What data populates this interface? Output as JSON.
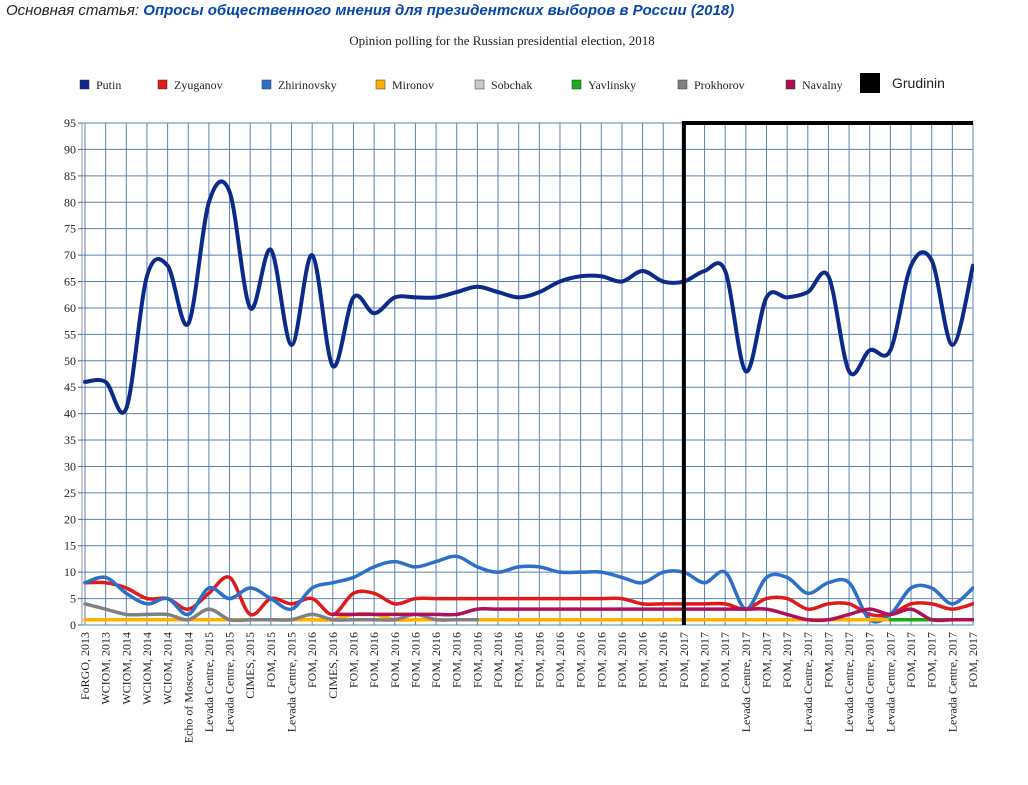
{
  "header": {
    "label": "Основная статья:",
    "link": "Опросы общественного мнения для президентских выборов в России (2018)"
  },
  "chart_data": {
    "type": "line",
    "title": "Opinion polling for the Russian presidential election, 2018",
    "categories": [
      "FoRGO, 2013",
      "WCIOM, 2013",
      "WCIOM, 2014",
      "WCIOM, 2014",
      "WCIOM, 2014",
      "Echo of Moscow, 2014",
      "Levada Centre, 2015",
      "Levada Centre, 2015",
      "CIMES, 2015",
      "FOM, 2015",
      "Levada Centre, 2015",
      "FOM, 2016",
      "CIMES, 2016",
      "FOM, 2016",
      "FOM, 2016",
      "FOM, 2016",
      "FOM, 2016",
      "FOM, 2016",
      "FOM, 2016",
      "FOM, 2016",
      "FOM, 2016",
      "FOM, 2016",
      "FOM, 2016",
      "FOM, 2016",
      "FOM, 2016",
      "FOM, 2016",
      "FOM, 2016",
      "FOM, 2016",
      "FOM, 2016",
      "FOM, 2017",
      "FOM, 2017",
      "FOM, 2017",
      "Levada Centre, 2017",
      "FOM, 2017",
      "FOM, 2017",
      "Levada Centre, 2017",
      "FOM, 2017",
      "Levada Centre, 2017",
      "Levada Centre, 2017",
      "Levada Centre, 2017",
      "FOM, 2017",
      "FOM, 2017",
      "Levada Centre, 2017",
      "FOM, 2017"
    ],
    "series": [
      {
        "name": "Putin",
        "color": "#0b2a8a",
        "values": [
          46,
          46,
          41,
          66,
          68,
          57,
          80,
          82,
          60,
          71,
          53,
          70,
          49,
          62,
          59,
          62,
          62,
          62,
          63,
          64,
          63,
          62,
          63,
          65,
          66,
          66,
          65,
          67,
          65,
          65,
          67,
          67,
          48,
          62,
          62,
          63,
          66,
          48,
          52,
          52,
          68,
          69,
          53,
          68
        ]
      },
      {
        "name": "Zyuganov",
        "color": "#e01a1a",
        "values": [
          8,
          8,
          7,
          5,
          5,
          3,
          6,
          9,
          2,
          5,
          4,
          5,
          2,
          6,
          6,
          4,
          5,
          5,
          5,
          5,
          5,
          5,
          5,
          5,
          5,
          5,
          5,
          4,
          4,
          4,
          4,
          4,
          3,
          5,
          5,
          3,
          4,
          4,
          2,
          2,
          4,
          4,
          3,
          4
        ]
      },
      {
        "name": "Zhirinovsky",
        "color": "#2e6fc8",
        "values": [
          8,
          9,
          6,
          4,
          5,
          2,
          7,
          5,
          7,
          5,
          3,
          7,
          8,
          9,
          11,
          12,
          11,
          12,
          13,
          11,
          10,
          11,
          11,
          10,
          10,
          10,
          9,
          8,
          10,
          10,
          8,
          10,
          3,
          9,
          9,
          6,
          8,
          8,
          1,
          2,
          7,
          7,
          4,
          7
        ]
      },
      {
        "name": "Mironov",
        "color": "#ffb000",
        "values": [
          1,
          1,
          1,
          1,
          1,
          1,
          1,
          1,
          1,
          1,
          1,
          1,
          1,
          2,
          2,
          1,
          1,
          1,
          1,
          1,
          1,
          1,
          1,
          1,
          1,
          1,
          1,
          1,
          1,
          1,
          1,
          1,
          1,
          1,
          1,
          1,
          1,
          1,
          1,
          1,
          1,
          1,
          1,
          1
        ]
      },
      {
        "name": "Sobchak",
        "color": "#c8c8c8",
        "values": [
          null,
          null,
          null,
          null,
          null,
          null,
          null,
          null,
          null,
          null,
          null,
          null,
          null,
          null,
          null,
          null,
          null,
          null,
          null,
          null,
          null,
          null,
          null,
          null,
          null,
          null,
          null,
          null,
          null,
          null,
          null,
          null,
          null,
          null,
          null,
          null,
          null,
          null,
          null,
          null,
          1,
          1,
          1,
          1
        ]
      },
      {
        "name": "Yavlinsky",
        "color": "#1aaa1a",
        "values": [
          null,
          null,
          null,
          null,
          null,
          null,
          null,
          null,
          null,
          null,
          null,
          null,
          null,
          null,
          null,
          null,
          null,
          null,
          null,
          null,
          null,
          null,
          null,
          null,
          null,
          null,
          null,
          null,
          null,
          null,
          null,
          null,
          null,
          null,
          null,
          null,
          null,
          null,
          null,
          1,
          1,
          1,
          1,
          1
        ]
      },
      {
        "name": "Prokhorov",
        "color": "#808080",
        "values": [
          4,
          3,
          2,
          2,
          2,
          1,
          3,
          1,
          1,
          1,
          1,
          2,
          1,
          1,
          1,
          1,
          2,
          1,
          1,
          1,
          null,
          null,
          null,
          null,
          null,
          null,
          null,
          null,
          null,
          null,
          null,
          null,
          null,
          null,
          null,
          null,
          null,
          null,
          null,
          null,
          null,
          null,
          null,
          null
        ]
      },
      {
        "name": "Navalny",
        "color": "#b0105a",
        "values": [
          null,
          null,
          null,
          null,
          null,
          null,
          null,
          null,
          null,
          null,
          null,
          null,
          2,
          2,
          2,
          2,
          2,
          2,
          2,
          3,
          3,
          3,
          3,
          3,
          3,
          3,
          3,
          3,
          3,
          3,
          3,
          3,
          3,
          3,
          2,
          1,
          1,
          2,
          3,
          2,
          3,
          1,
          1,
          1
        ]
      },
      {
        "name": "Grudinin",
        "color": "#000000",
        "values": [
          null,
          null,
          null,
          null,
          null,
          null,
          null,
          null,
          null,
          null,
          null,
          null,
          null,
          null,
          null,
          null,
          null,
          null,
          null,
          null,
          null,
          null,
          null,
          null,
          null,
          null,
          null,
          null,
          null,
          null,
          null,
          null,
          null,
          null,
          null,
          null,
          null,
          null,
          null,
          null,
          null,
          null,
          null,
          null
        ]
      }
    ],
    "ylim": [
      0,
      95
    ],
    "yticks": [
      0,
      5,
      10,
      15,
      20,
      25,
      30,
      35,
      40,
      45,
      50,
      55,
      60,
      65,
      70,
      75,
      80,
      85,
      90,
      95
    ],
    "grid": true
  }
}
